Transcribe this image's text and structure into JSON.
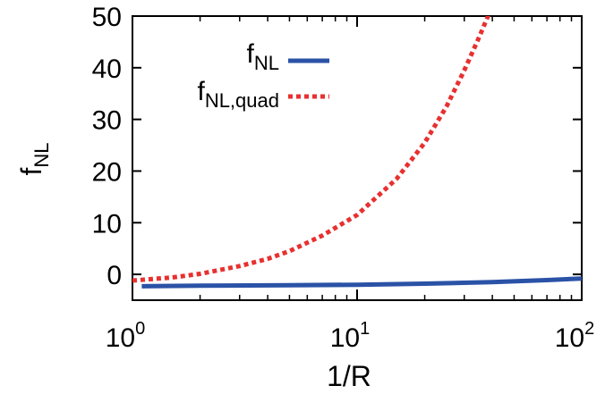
{
  "chart_data": {
    "type": "line",
    "title": "",
    "xlabel": "1/R",
    "ylabel": {
      "base": "f",
      "sub": "NL"
    },
    "xscale": "log",
    "xlim": [
      1,
      100
    ],
    "ylim": [
      -5,
      50
    ],
    "xticks": [
      {
        "value": 1,
        "base": "10",
        "exp": "0"
      },
      {
        "value": 10,
        "base": "10",
        "exp": "1"
      },
      {
        "value": 100,
        "base": "10",
        "exp": "2"
      }
    ],
    "yticks": [
      {
        "value": 0,
        "label": "0"
      },
      {
        "value": 10,
        "label": "10"
      },
      {
        "value": 20,
        "label": "20"
      },
      {
        "value": 30,
        "label": "30"
      },
      {
        "value": 40,
        "label": "40"
      },
      {
        "value": 50,
        "label": "50"
      }
    ],
    "grid": false,
    "legend_position": "top-center",
    "series": [
      {
        "name": {
          "base": "f",
          "sub": "NL"
        },
        "color": "#2a52a6",
        "style": "solid",
        "x": [
          1.1,
          2,
          5,
          10,
          20,
          40,
          70,
          100
        ],
        "y": [
          -2.3,
          -2.2,
          -2.1,
          -2.0,
          -1.8,
          -1.5,
          -1.1,
          -0.8
        ]
      },
      {
        "name": {
          "base": "f",
          "sub": "NL,quad"
        },
        "color": "#e83030",
        "style": "dotted",
        "x": [
          1.0,
          1.5,
          2,
          3,
          4,
          5,
          7,
          10,
          15,
          20,
          25,
          30,
          35,
          40
        ],
        "y": [
          -1.2,
          -0.6,
          0.1,
          1.6,
          3.0,
          4.5,
          7.5,
          11.5,
          18.5,
          25.5,
          32.5,
          39.5,
          46,
          52
        ]
      }
    ]
  }
}
